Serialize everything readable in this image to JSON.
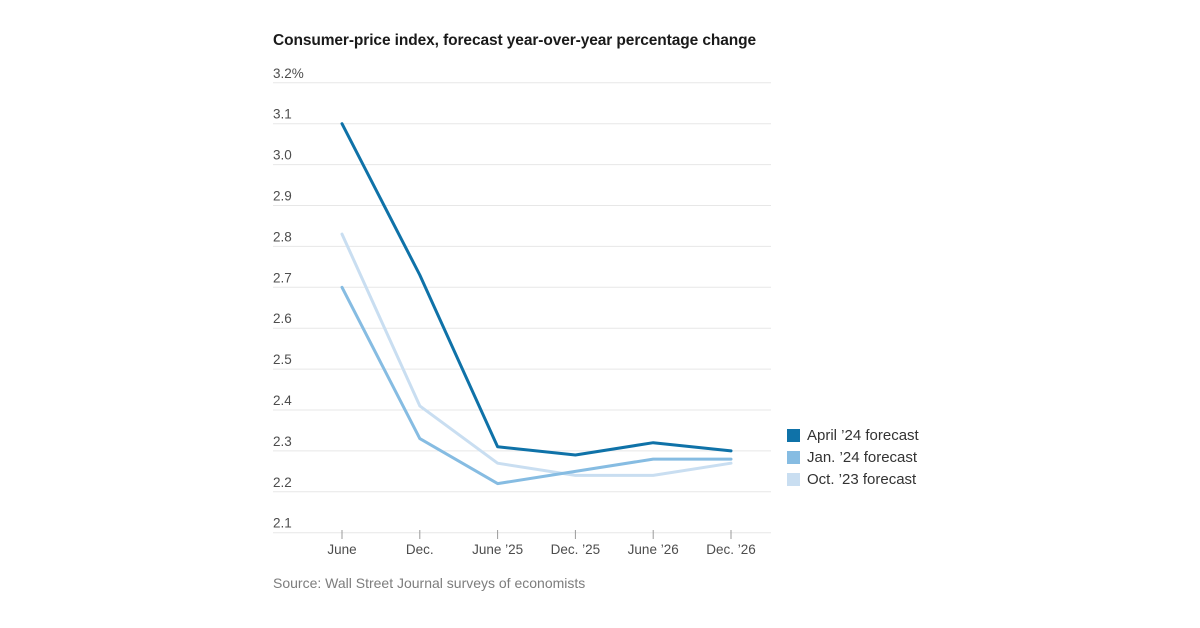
{
  "page": {
    "background": "#ffffff"
  },
  "header": {
    "title": "Consumer-price index, forecast year-over-year percentage change"
  },
  "source_note": "Source: Wall Street Journal surveys of economists",
  "colors": {
    "gridline": "#e7e7e7",
    "tick": "#9b9b9b",
    "axis_text": "#4d4d4d",
    "title_text": "#1a1a1a",
    "source_text": "#7d7d7d"
  },
  "chart_data": {
    "type": "line",
    "title": "Consumer-price index, forecast year-over-year percentage change",
    "categories": [
      "June",
      "Dec.",
      "June ’25",
      "Dec. ’25",
      "June ’26",
      "Dec. ’26"
    ],
    "series": [
      {
        "name": "April ’24 forecast",
        "color": "#0f72a8",
        "values": [
          3.1,
          2.73,
          2.31,
          2.29,
          2.32,
          2.3
        ]
      },
      {
        "name": "Jan. ’24 forecast",
        "color": "#86bce2",
        "values": [
          2.7,
          2.33,
          2.22,
          2.25,
          2.28,
          2.28
        ]
      },
      {
        "name": "Oct. ’23 forecast",
        "color": "#c9def1",
        "values": [
          2.83,
          2.41,
          2.27,
          2.24,
          2.24,
          2.27
        ]
      }
    ],
    "y_axis": {
      "min": 2.1,
      "max": 3.2,
      "step": 0.1,
      "tick_labels": [
        "3.2%",
        "3.1",
        "3.0",
        "2.9",
        "2.8",
        "2.7",
        "2.6",
        "2.5",
        "2.4",
        "2.3",
        "2.2",
        "2.1"
      ]
    },
    "xlabel": "",
    "ylabel": "",
    "grid": true,
    "legend_position": "right"
  }
}
